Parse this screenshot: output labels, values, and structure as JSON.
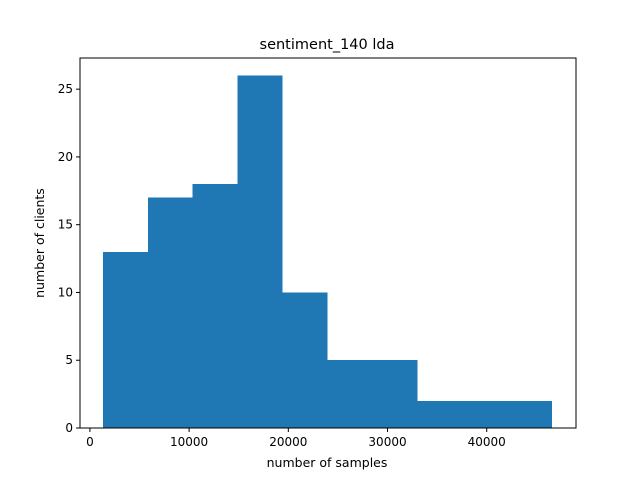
{
  "chart_data": {
    "type": "bar",
    "title": "sentiment_140 lda",
    "xlabel": "number of samples",
    "ylabel": "number of clients",
    "xlim": [
      -1000,
      49000
    ],
    "ylim": [
      0,
      27.3
    ],
    "xticks": [
      0,
      10000,
      20000,
      30000,
      40000
    ],
    "xtick_labels": [
      "0",
      "10000",
      "20000",
      "30000",
      "40000"
    ],
    "yticks": [
      0,
      5,
      10,
      15,
      20,
      25
    ],
    "ytick_labels": [
      "0",
      "5",
      "10",
      "15",
      "20",
      "25"
    ],
    "bin_edges": [
      1300,
      5830,
      10360,
      14890,
      19420,
      23950,
      28480,
      33010,
      37540,
      42070,
      46600
    ],
    "counts": [
      13,
      17,
      18,
      26,
      10,
      5,
      5,
      2,
      2,
      2
    ],
    "grid": false,
    "colors": {
      "bar": "#1f77b4",
      "axes": "#000000",
      "background": "#ffffff"
    }
  }
}
